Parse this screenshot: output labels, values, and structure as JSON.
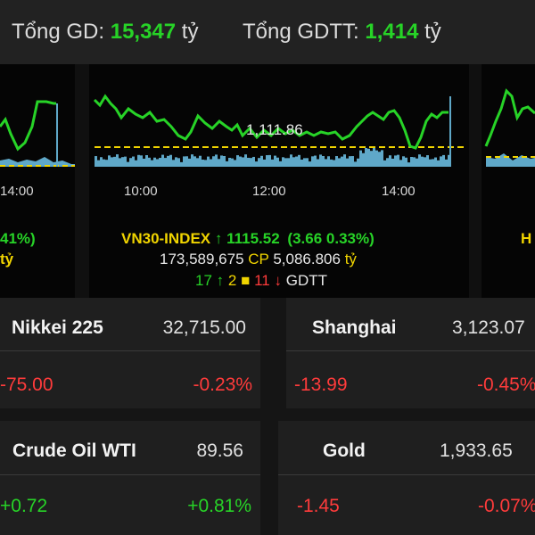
{
  "header": {
    "gd_label": "Tổng GD:",
    "gd_value": "15,347",
    "gd_unit": "tỷ",
    "gdtt_label": "Tổng GDTT:",
    "gdtt_value": "1,414",
    "gdtt_unit": "tỷ"
  },
  "left_partial": {
    "pct": "41%)",
    "unit": "tỷ",
    "tick": "14:00"
  },
  "right_partial": {
    "letter": "H"
  },
  "vn30": {
    "name": "VN30-INDEX",
    "arrow": "↑",
    "value": "1115.52",
    "change": "(3.66",
    "pct": "0.33%)",
    "volume": "173,589,675",
    "cp": "CP",
    "amount": "5,086.806",
    "unit": "tỷ",
    "up_count": "17",
    "up_arrow": "↑",
    "flat_count": "2",
    "flat_marker": "■",
    "down_count": "11",
    "down_arrow": "↓",
    "gdtt": "GDTT",
    "ref_label": "1,111.86",
    "ticks": [
      "10:00",
      "12:00",
      "14:00"
    ],
    "line_color": "#27d327",
    "volume_color": "#5fa8c8",
    "ref_color": "#f0d400"
  },
  "markets": [
    {
      "name": "Nikkei 225",
      "value": "32,715.00",
      "change": "-75.00",
      "pct": "-0.23%",
      "color": "#ff3b3b"
    },
    {
      "name": "Shanghai",
      "value": "3,123.07",
      "change": "-13.99",
      "pct": "-0.45%",
      "color": "#ff3b3b"
    },
    {
      "name": "Crude Oil WTI",
      "value": "89.56",
      "change": "+0.72",
      "pct": "+0.81%",
      "color": "#27d327"
    },
    {
      "name": "Gold",
      "value": "1,933.65",
      "change": "-1.45",
      "pct": "-0.07%",
      "color": "#ff3b3b"
    }
  ]
}
